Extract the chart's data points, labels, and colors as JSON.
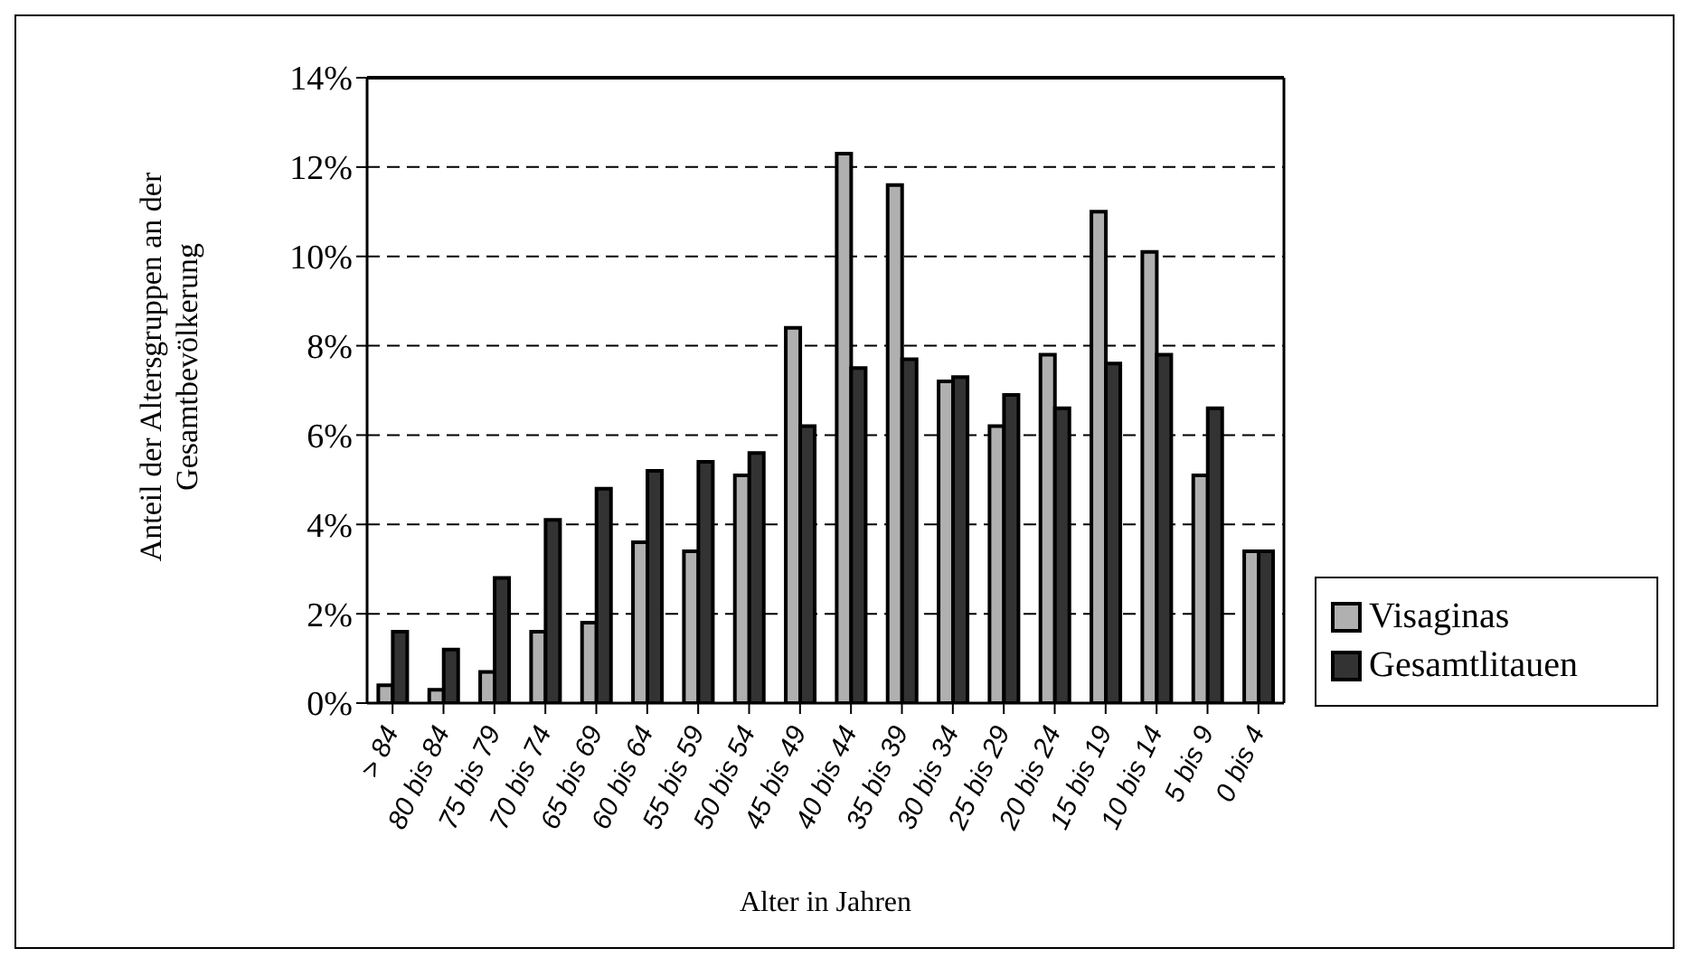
{
  "chart_data": {
    "type": "bar",
    "xlabel": "Alter in Jahren",
    "ylabel": "Anteil der Altersgruppen an der Gesamtbevölkerung",
    "categories": [
      "> 84",
      "80 bis 84",
      "75 bis 79",
      "70 bis 74",
      "65 bis 69",
      "60 bis 64",
      "55 bis 59",
      "50 bis 54",
      "45 bis 49",
      "40 bis 44",
      "35 bis 39",
      "30 bis 34",
      "25 bis 29",
      "20 bis 24",
      "15 bis 19",
      "10 bis 14",
      "5 bis 9",
      "0 bis 4"
    ],
    "series": [
      {
        "name": "Visaginas",
        "color": "#b0b0b0",
        "values": [
          0.4,
          0.3,
          0.7,
          1.6,
          1.8,
          3.6,
          3.4,
          5.1,
          8.4,
          12.3,
          11.6,
          7.2,
          6.2,
          7.8,
          11.0,
          10.1,
          5.1,
          3.4
        ]
      },
      {
        "name": "Gesamtlitauen",
        "color": "#333333",
        "values": [
          1.6,
          1.2,
          2.8,
          4.1,
          4.8,
          5.2,
          5.4,
          5.6,
          6.2,
          7.5,
          7.7,
          7.3,
          6.9,
          6.6,
          7.6,
          7.8,
          6.6,
          3.4
        ]
      }
    ],
    "ylim": [
      0,
      14
    ],
    "yticks": [
      {
        "value": 0,
        "label": "0%"
      },
      {
        "value": 2,
        "label": "2%"
      },
      {
        "value": 4,
        "label": "4%"
      },
      {
        "value": 6,
        "label": "6%"
      },
      {
        "value": 8,
        "label": "8%"
      },
      {
        "value": 10,
        "label": "10%"
      },
      {
        "value": 12,
        "label": "12%"
      },
      {
        "value": 14,
        "label": "14%"
      }
    ],
    "grid": "y",
    "legend": "right"
  }
}
